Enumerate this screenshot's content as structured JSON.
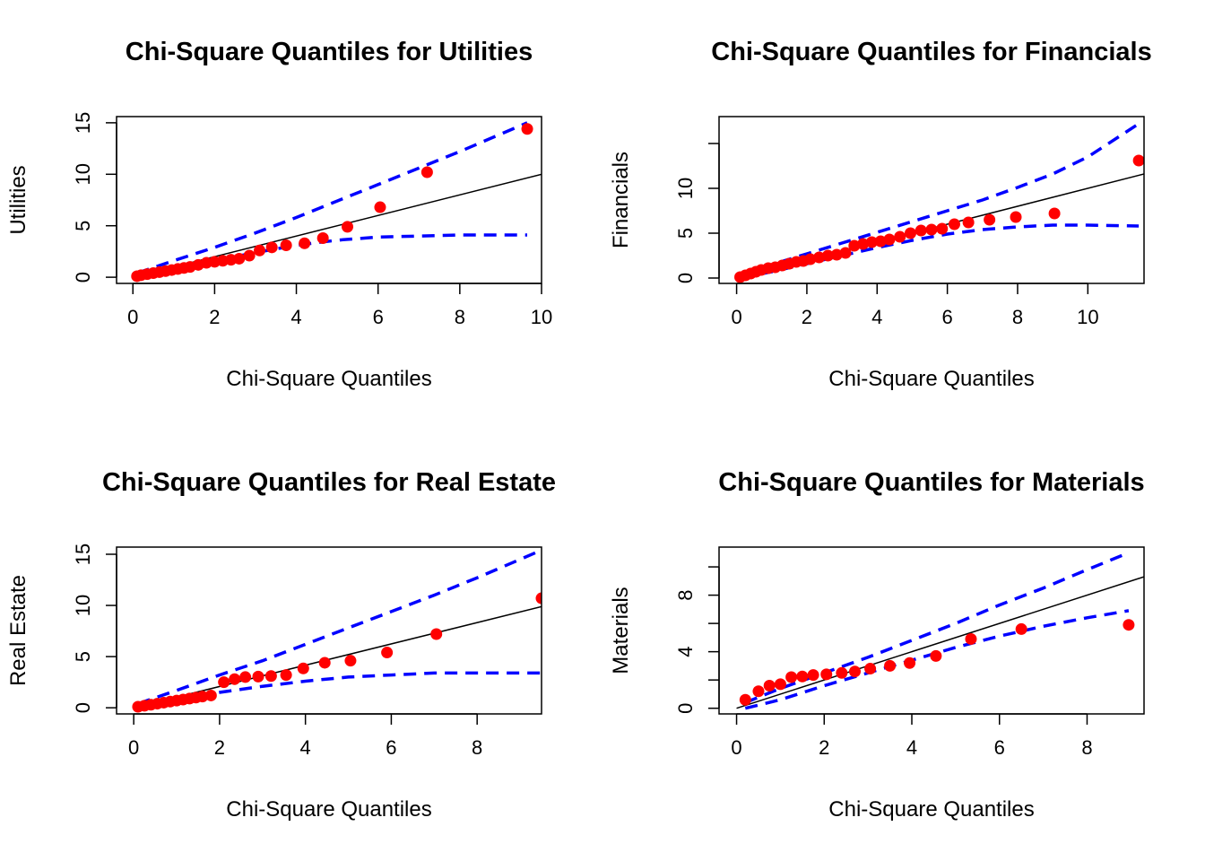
{
  "colors": {
    "points": "#ff0000",
    "envelope": "#0000ff",
    "reference_line": "#000000"
  },
  "chart_data": [
    {
      "type": "scatter",
      "title": "Chi-Square Quantiles for Utilities",
      "xlabel": "Chi-Square Quantiles",
      "ylabel": "Utilities",
      "xlim": [
        -0.4,
        10.0
      ],
      "ylim": [
        -0.6,
        15.6
      ],
      "xticks": [
        0,
        2,
        4,
        6,
        8,
        10
      ],
      "xtick_labels": [
        "0",
        "2",
        "4",
        "6",
        "8",
        "10"
      ],
      "yticks": [
        0,
        5,
        10,
        15
      ],
      "ytick_labels": [
        "0",
        "5",
        "10",
        "15"
      ],
      "grid": false,
      "points": {
        "x": [
          0.1,
          0.2,
          0.35,
          0.5,
          0.65,
          0.8,
          0.95,
          1.1,
          1.25,
          1.4,
          1.6,
          1.8,
          2.0,
          2.2,
          2.4,
          2.6,
          2.85,
          3.1,
          3.4,
          3.75,
          4.2,
          4.65,
          5.25,
          6.05,
          7.2,
          9.65
        ],
        "y": [
          0.1,
          0.2,
          0.3,
          0.4,
          0.5,
          0.6,
          0.7,
          0.8,
          0.9,
          1.0,
          1.2,
          1.4,
          1.5,
          1.6,
          1.7,
          1.8,
          2.1,
          2.6,
          2.9,
          3.1,
          3.3,
          3.8,
          4.9,
          6.8,
          10.2,
          14.4
        ]
      },
      "reference_line": {
        "intercept": 0,
        "slope": 1.0,
        "x_range": [
          0.1,
          10.0
        ]
      },
      "upper_band": {
        "x": [
          0.1,
          1.0,
          2.0,
          3.0,
          4.0,
          5.0,
          6.0,
          7.0,
          8.0,
          9.0,
          9.65
        ],
        "y": [
          0.4,
          1.6,
          2.9,
          4.3,
          5.8,
          7.4,
          9.0,
          10.6,
          12.2,
          13.9,
          15.0
        ]
      },
      "lower_band": {
        "x": [
          0.1,
          1.0,
          2.0,
          3.0,
          4.0,
          5.0,
          6.0,
          7.0,
          8.0,
          9.0,
          9.65
        ],
        "y": [
          0.0,
          0.7,
          1.6,
          2.4,
          3.1,
          3.6,
          3.9,
          4.0,
          4.1,
          4.1,
          4.1
        ]
      }
    },
    {
      "type": "scatter",
      "title": "Chi-Square Quantiles for Financials",
      "xlabel": "Chi-Square Quantiles",
      "ylabel": "Financials",
      "xlim": [
        -0.5,
        11.6
      ],
      "ylim": [
        -0.6,
        18.0
      ],
      "xticks": [
        0,
        2,
        4,
        6,
        8,
        10
      ],
      "xtick_labels": [
        "0",
        "2",
        "4",
        "6",
        "8",
        "10"
      ],
      "yticks": [
        0,
        5,
        10,
        15
      ],
      "ytick_labels": [
        "0",
        "5",
        "10",
        ""
      ],
      "grid": false,
      "points": {
        "x": [
          0.1,
          0.25,
          0.4,
          0.55,
          0.7,
          0.9,
          1.1,
          1.3,
          1.5,
          1.7,
          1.9,
          2.1,
          2.35,
          2.6,
          2.85,
          3.1,
          3.35,
          3.6,
          3.85,
          4.1,
          4.35,
          4.65,
          4.95,
          5.25,
          5.55,
          5.85,
          6.2,
          6.6,
          7.2,
          7.95,
          9.05,
          11.45
        ],
        "y": [
          0.1,
          0.3,
          0.5,
          0.7,
          0.9,
          1.1,
          1.2,
          1.4,
          1.6,
          1.8,
          1.9,
          2.1,
          2.3,
          2.5,
          2.6,
          2.8,
          3.6,
          3.8,
          4.0,
          4.1,
          4.3,
          4.6,
          5.0,
          5.3,
          5.4,
          5.5,
          6.0,
          6.2,
          6.5,
          6.8,
          7.2,
          13.1
        ]
      },
      "reference_line": {
        "intercept": 0,
        "slope": 1.0,
        "x_range": [
          0.0,
          11.6
        ]
      },
      "upper_band": {
        "x": [
          0.1,
          1.0,
          2.0,
          3.0,
          4.0,
          5.0,
          6.0,
          7.0,
          8.0,
          9.0,
          10.0,
          11.45
        ],
        "y": [
          0.4,
          1.5,
          2.7,
          3.9,
          5.1,
          6.3,
          7.5,
          8.7,
          10.1,
          11.6,
          13.5,
          17.2
        ]
      },
      "lower_band": {
        "x": [
          0.1,
          1.0,
          2.0,
          3.0,
          4.0,
          5.0,
          6.0,
          7.0,
          8.0,
          9.0,
          10.0,
          11.45
        ],
        "y": [
          0.0,
          0.7,
          1.6,
          2.5,
          3.4,
          4.2,
          4.9,
          5.4,
          5.7,
          5.9,
          5.9,
          5.8
        ]
      }
    },
    {
      "type": "scatter",
      "title": "Chi-Square Quantiles for Real Estate",
      "xlabel": "Chi-Square Quantiles",
      "ylabel": "Real Estate",
      "xlim": [
        -0.4,
        9.5
      ],
      "ylim": [
        -0.6,
        15.7
      ],
      "xticks": [
        0,
        2,
        4,
        6,
        8
      ],
      "xtick_labels": [
        "0",
        "2",
        "4",
        "6",
        "8"
      ],
      "yticks": [
        0,
        5,
        10,
        15
      ],
      "ytick_labels": [
        "0",
        "5",
        "10",
        "15"
      ],
      "grid": false,
      "points": {
        "x": [
          0.1,
          0.25,
          0.4,
          0.55,
          0.7,
          0.85,
          1.0,
          1.15,
          1.3,
          1.45,
          1.6,
          1.8,
          2.1,
          2.35,
          2.6,
          2.9,
          3.2,
          3.55,
          3.95,
          4.45,
          5.05,
          5.9,
          7.05,
          9.5
        ],
        "y": [
          0.1,
          0.2,
          0.3,
          0.4,
          0.5,
          0.6,
          0.7,
          0.8,
          0.9,
          1.0,
          1.1,
          1.2,
          2.5,
          2.8,
          3.0,
          3.05,
          3.1,
          3.2,
          3.85,
          4.4,
          4.6,
          5.4,
          7.2,
          10.7
        ]
      },
      "reference_line": {
        "intercept": 0,
        "slope": 1.04,
        "x_range": [
          0.0,
          9.5
        ]
      },
      "upper_band": {
        "x": [
          0.1,
          1.0,
          2.0,
          3.0,
          4.0,
          5.0,
          6.0,
          7.0,
          8.0,
          9.0,
          9.5
        ],
        "y": [
          0.4,
          1.7,
          3.2,
          4.6,
          6.2,
          7.8,
          9.4,
          11.0,
          12.7,
          14.5,
          15.4
        ]
      },
      "lower_band": {
        "x": [
          0.1,
          1.0,
          2.0,
          3.0,
          4.0,
          5.0,
          6.0,
          7.0,
          8.0,
          9.0,
          9.5
        ],
        "y": [
          0.0,
          0.7,
          1.5,
          2.1,
          2.6,
          3.0,
          3.2,
          3.4,
          3.4,
          3.4,
          3.4
        ]
      }
    },
    {
      "type": "scatter",
      "title": "Chi-Square Quantiles for Materials",
      "xlabel": "Chi-Square Quantiles",
      "ylabel": "Materials",
      "xlim": [
        -0.4,
        9.3
      ],
      "ylim": [
        -0.4,
        11.4
      ],
      "xticks": [
        0,
        2,
        4,
        6,
        8
      ],
      "xtick_labels": [
        "0",
        "2",
        "4",
        "6",
        "8"
      ],
      "yticks": [
        0,
        2,
        4,
        6,
        8,
        10
      ],
      "ytick_labels": [
        "0",
        "",
        "4",
        "",
        "8",
        ""
      ],
      "grid": false,
      "points": {
        "x": [
          0.2,
          0.5,
          0.75,
          1.0,
          1.25,
          1.5,
          1.75,
          2.05,
          2.4,
          2.7,
          3.05,
          3.5,
          3.95,
          4.55,
          5.35,
          6.5,
          8.95
        ],
        "y": [
          0.6,
          1.2,
          1.6,
          1.7,
          2.2,
          2.25,
          2.35,
          2.4,
          2.5,
          2.6,
          2.8,
          3.0,
          3.2,
          3.7,
          4.9,
          5.6,
          5.9
        ]
      },
      "reference_line": {
        "intercept": 0,
        "slope": 1.0,
        "x_range": [
          0.0,
          9.3
        ]
      },
      "upper_band": {
        "x": [
          0.2,
          1.0,
          2.0,
          3.0,
          4.0,
          5.0,
          6.0,
          7.0,
          8.0,
          8.95
        ],
        "y": [
          0.4,
          1.4,
          2.5,
          3.6,
          4.8,
          6.0,
          7.3,
          8.5,
          9.8,
          11.0
        ]
      },
      "lower_band": {
        "x": [
          0.2,
          1.0,
          2.0,
          3.0,
          4.0,
          5.0,
          6.0,
          7.0,
          8.0,
          8.95
        ],
        "y": [
          0.0,
          0.6,
          1.6,
          2.5,
          3.4,
          4.3,
          5.1,
          5.8,
          6.4,
          6.9
        ]
      }
    }
  ]
}
